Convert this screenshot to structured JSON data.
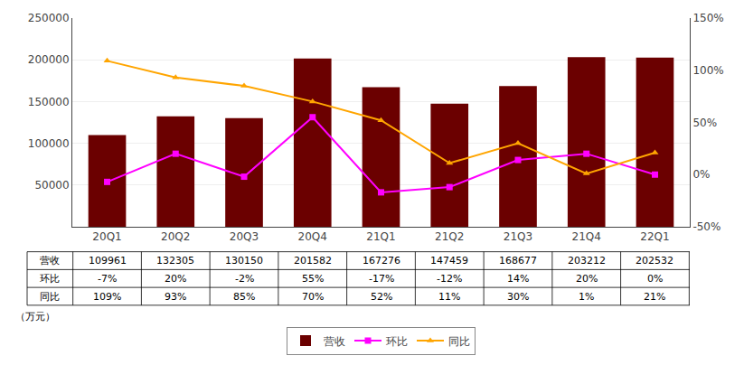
{
  "chart_data": {
    "type": "bar",
    "categories": [
      "20Q1",
      "20Q2",
      "20Q3",
      "20Q4",
      "21Q1",
      "21Q2",
      "21Q3",
      "21Q4",
      "22Q1"
    ],
    "series": [
      {
        "name": "营收",
        "type": "bar",
        "color": "#6B0000",
        "values": [
          109961,
          132305,
          130150,
          201582,
          167276,
          147459,
          168677,
          203212,
          202532
        ]
      },
      {
        "name": "环比",
        "type": "line",
        "axis": "y2",
        "color": "#FF00FF",
        "marker": "square",
        "line_style": "solid",
        "values": [
          -0.07,
          0.2,
          -0.02,
          0.55,
          -0.17,
          -0.12,
          0.14,
          0.2,
          0.0
        ]
      },
      {
        "name": "同比",
        "type": "line",
        "axis": "y2",
        "color": "#FFA500",
        "marker": "triangle",
        "line_style": "solid",
        "values": [
          1.09,
          0.93,
          0.85,
          0.7,
          0.52,
          0.11,
          0.3,
          0.01,
          0.21
        ]
      }
    ],
    "ylim": [
      0,
      250000
    ],
    "yticks": [
      50000,
      100000,
      150000,
      200000,
      250000
    ],
    "y2lim": [
      -0.5,
      1.5
    ],
    "y2ticks": [
      {
        "value": -0.5,
        "label": "-50%"
      },
      {
        "value": 0,
        "label": "0%"
      },
      {
        "value": 0.5,
        "label": "50%"
      },
      {
        "value": 1,
        "label": "100%"
      },
      {
        "value": 1.5,
        "label": "150%"
      }
    ],
    "grid": true,
    "legend": "bottom",
    "table": {
      "row_labels": [
        "营收",
        "环比",
        "同比"
      ],
      "rows": [
        [
          "109961",
          "132305",
          "130150",
          "201582",
          "167276",
          "147459",
          "168677",
          "203212",
          "202532"
        ],
        [
          "-7%",
          "20%",
          "-2%",
          "55%",
          "-17%",
          "-12%",
          "14%",
          "20%",
          "0%"
        ],
        [
          "109%",
          "93%",
          "85%",
          "70%",
          "52%",
          "11%",
          "30%",
          "1%",
          "21%"
        ]
      ]
    },
    "unit_label": "（万元）"
  }
}
